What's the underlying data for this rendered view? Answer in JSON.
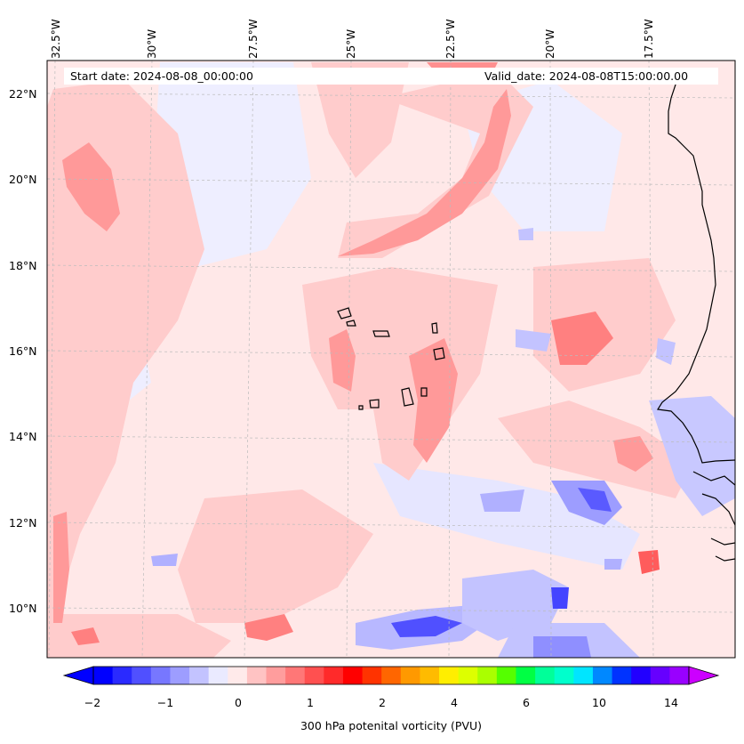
{
  "header": {
    "start": "Start date: 2024-08-08_00:00:00",
    "valid": "Valid_date: 2024-08-08T15:00:00.00"
  },
  "lon_ticks": [
    "32.5°W",
    "30°W",
    "27.5°W",
    "25°W",
    "22.5°W",
    "20°W",
    "17.5°W"
  ],
  "lat_ticks": [
    "22°N",
    "20°N",
    "18°N",
    "16°N",
    "14°N",
    "12°N",
    "10°N"
  ],
  "colorbar": {
    "label": "300 hPa potenital vorticity (PVU)",
    "ticks": [
      "−2",
      "−1",
      "0",
      "1",
      "2",
      "4",
      "6",
      "10",
      "14"
    ],
    "colors": [
      "#0000ff",
      "#2a2aff",
      "#5050ff",
      "#7777ff",
      "#9d9dff",
      "#c3c3ff",
      "#eaeaff",
      "#ffeaea",
      "#ffc3c3",
      "#ff9d9d",
      "#ff7777",
      "#ff5050",
      "#ff2a2a",
      "#ff0000",
      "#ff3300",
      "#ff6600",
      "#ff9900",
      "#ffbb00",
      "#ffee00",
      "#ddff00",
      "#aaff00",
      "#55ff00",
      "#00ff44",
      "#00ff99",
      "#00ffcc",
      "#00e5ff",
      "#0088ff",
      "#0033ff",
      "#2200ff",
      "#6600ff",
      "#9900ff"
    ]
  },
  "map_colors": {
    "base": "#ffe8e8",
    "pink": "#ffcccc",
    "red1": "#ffaaaa",
    "red2": "#ff8080",
    "red3": "#ff5c5c",
    "blue1": "#eaeaff",
    "blue2": "#c8c8ff",
    "blue3": "#8f8fff",
    "blue4": "#5050ff"
  }
}
